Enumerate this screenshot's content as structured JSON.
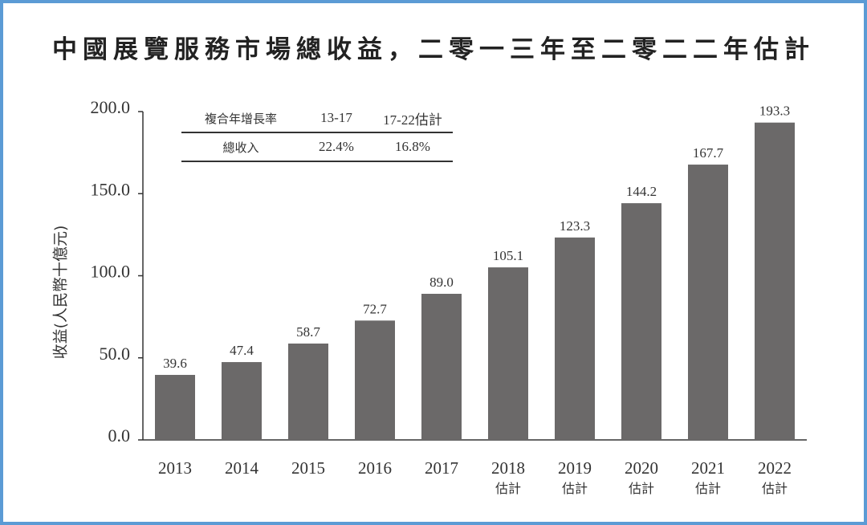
{
  "chart_data": {
    "type": "bar",
    "title": "中國展覽服務市場總收益，二零一三年至二零二二年估計",
    "ylabel": "收益(人民幣十億元)",
    "xlabel": "",
    "ylim": [
      0,
      200
    ],
    "yticks": [
      "0.0",
      "50.0",
      "100.0",
      "150.0",
      "200.0"
    ],
    "categories": [
      "2013",
      "2014",
      "2015",
      "2016",
      "2017",
      "2018",
      "2019",
      "2020",
      "2021",
      "2022"
    ],
    "category_sublabels": [
      "",
      "",
      "",
      "",
      "",
      "估計",
      "估計",
      "估計",
      "估計",
      "估計"
    ],
    "values": [
      39.6,
      47.4,
      58.7,
      72.7,
      89.0,
      105.1,
      123.3,
      144.2,
      167.7,
      193.3
    ],
    "data_labels": [
      "39.6",
      "47.4",
      "58.7",
      "72.7",
      "89.0",
      "105.1",
      "123.3",
      "144.2",
      "167.7",
      "193.3"
    ],
    "bar_color": "#6b6969",
    "grid": false,
    "legend": "none",
    "cagr_table": {
      "headers": [
        "複合年增長率",
        "13-17",
        "17-22估計"
      ],
      "rows": [
        [
          "總收入",
          "22.4%",
          "16.8%"
        ]
      ]
    }
  },
  "colors": {
    "frame": "#5b9bd5",
    "bar": "#6b6969",
    "text": "#333333"
  }
}
